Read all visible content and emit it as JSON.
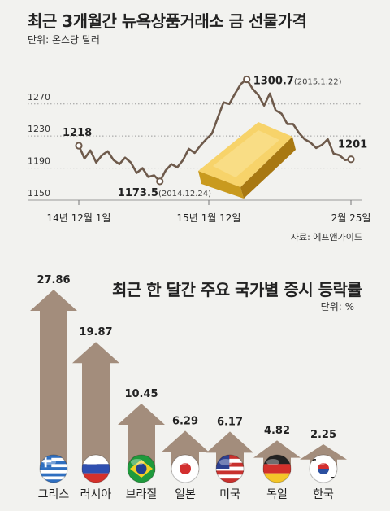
{
  "chart_data": [
    {
      "type": "line",
      "title": "최근 3개월간 뉴욕상품거래소 금 선물가격",
      "unit": "단위: 온스당 달러",
      "source": "자료: 에프앤가이드",
      "y_ticks": [
        "1270",
        "1230",
        "1190",
        "1150"
      ],
      "x_ticks": [
        "14년 12월 1일",
        "15년 1월 12일",
        "2월 25일"
      ],
      "ylim": [
        1150,
        1310
      ],
      "grid": true,
      "series": [
        {
          "values": [
            1218,
            1202,
            1212,
            1197,
            1206,
            1211,
            1200,
            1195,
            1203,
            1197,
            1184,
            1190,
            1179,
            1181,
            1173.5,
            1187,
            1195,
            1191,
            1200,
            1214,
            1209,
            1218,
            1226,
            1233,
            1253,
            1272,
            1270,
            1283,
            1295,
            1300.7,
            1289,
            1281,
            1268,
            1283,
            1262,
            1258,
            1245,
            1245,
            1234,
            1226,
            1222,
            1215,
            1219,
            1226,
            1208,
            1206,
            1200,
            1201
          ]
        }
      ],
      "annotations": [
        {
          "index": 0,
          "label": "1218"
        },
        {
          "index": 14,
          "label": "1173.5",
          "note": "(2014.12.24)"
        },
        {
          "index": 29,
          "label": "1300.7",
          "note": "(2015.1.22)"
        },
        {
          "index": 47,
          "label": "1201"
        }
      ]
    },
    {
      "type": "bar",
      "title": "최근 한 달간 주요 국가별 증시 등락률",
      "unit": "단위: %",
      "categories": [
        "그리스",
        "러시아",
        "브라질",
        "일본",
        "미국",
        "독일",
        "한국"
      ],
      "values": [
        27.86,
        19.87,
        10.45,
        6.29,
        6.17,
        4.82,
        2.25
      ],
      "value_labels": [
        "27.86",
        "19.87",
        "10.45",
        "6.29",
        "6.17",
        "4.82",
        "2.25"
      ],
      "flags": [
        "greece-flag",
        "russia-flag",
        "brazil-flag",
        "japan-flag",
        "usa-flag",
        "germany-flag",
        "korea-flag"
      ],
      "colors": {
        "arrow": "#a38d7c"
      }
    }
  ]
}
